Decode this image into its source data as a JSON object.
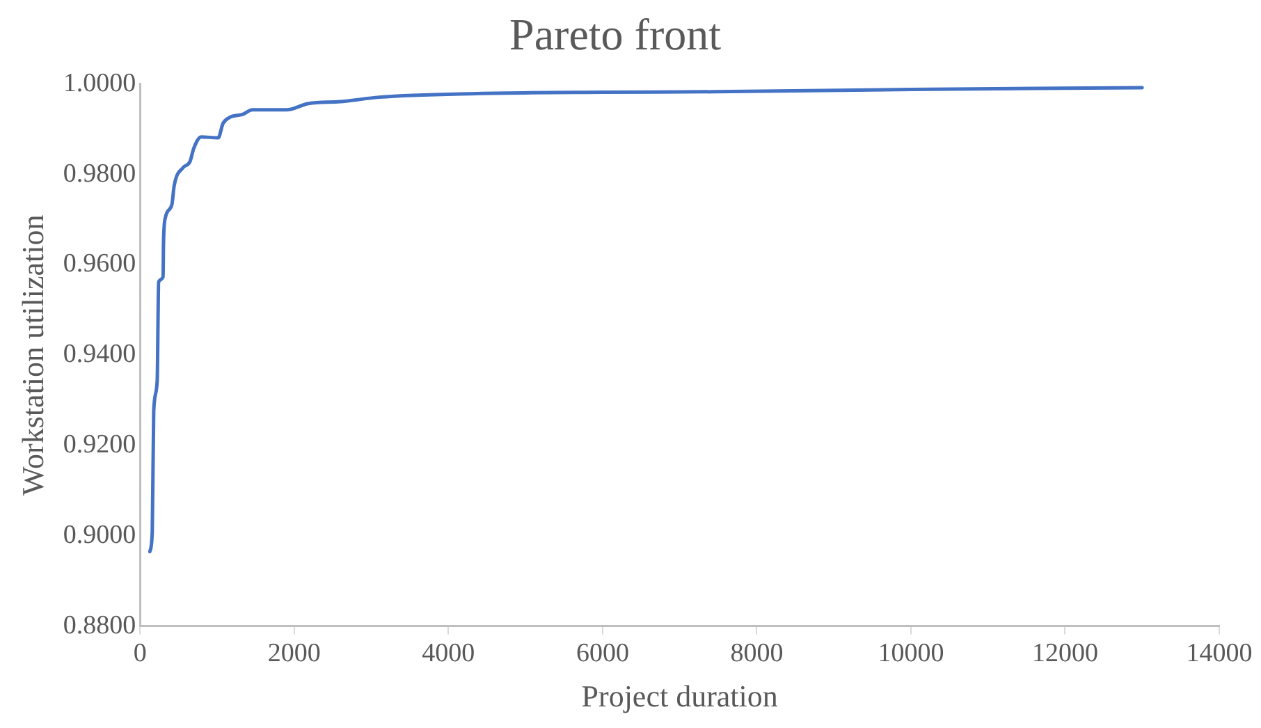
{
  "chart_data": {
    "type": "line",
    "title": "Pareto front",
    "xlabel": "Project duration",
    "ylabel": "Workstation utilization",
    "xlim": [
      0,
      14000
    ],
    "xticks": [
      0,
      2000,
      4000,
      6000,
      8000,
      10000,
      12000,
      14000
    ],
    "ylim": [
      0.88,
      1.0
    ],
    "yticks": [
      {
        "value": 0.88,
        "label": "0.8800"
      },
      {
        "value": 0.9,
        "label": "0.9000"
      },
      {
        "value": 0.92,
        "label": "0.9200"
      },
      {
        "value": 0.94,
        "label": "0.9400"
      },
      {
        "value": 0.96,
        "label": "0.9600"
      },
      {
        "value": 0.98,
        "label": "0.9800"
      },
      {
        "value": 1.0,
        "label": "1.0000"
      }
    ],
    "grid": false,
    "legend": false,
    "marker": "none",
    "line_style": "solid",
    "series": [
      {
        "color": "#4472c4",
        "x": [
          127,
          158,
          177,
          222,
          241,
          298,
          304,
          329,
          412,
          443,
          557,
          646,
          697,
          792,
          1013,
          1076,
          1171,
          1330,
          1457,
          1900,
          2185,
          2597,
          3103,
          4370,
          6000,
          7450,
          10000,
          13000
        ],
        "values": [
          0.8965,
          0.9009,
          0.9277,
          0.9343,
          0.9562,
          0.9573,
          0.965,
          0.9705,
          0.9733,
          0.9776,
          0.9815,
          0.9828,
          0.9858,
          0.9883,
          0.9881,
          0.9913,
          0.9927,
          0.9933,
          0.9943,
          0.9943,
          0.9957,
          0.9961,
          0.9971,
          0.9979,
          0.9982,
          0.9983,
          0.9988,
          0.9992
        ]
      }
    ]
  }
}
